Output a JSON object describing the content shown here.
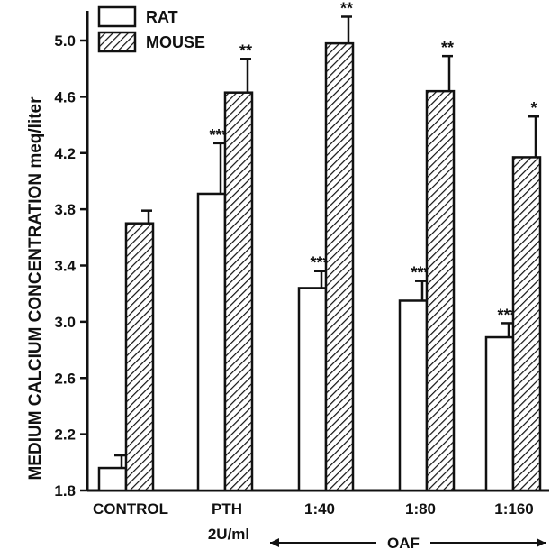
{
  "chart_data": {
    "type": "bar",
    "ylabel": "MEDIUM CALCIUM CONCENTRATION meq/liter",
    "ylim": [
      1.8,
      5.2
    ],
    "yticks": [
      "1.8",
      "2.2",
      "2.6",
      "3.0",
      "3.4",
      "3.8",
      "4.2",
      "4.6",
      "5.0"
    ],
    "categories": [
      {
        "label": "CONTROL",
        "sublabel": ""
      },
      {
        "label": "PTH",
        "sublabel": "2U/ml"
      },
      {
        "label": "1:40",
        "sublabel": ""
      },
      {
        "label": "1:80",
        "sublabel": ""
      },
      {
        "label": "1:160",
        "sublabel": ""
      }
    ],
    "group_label": "OAF",
    "series": [
      {
        "name": "RAT",
        "fill": "open",
        "values": [
          1.96,
          3.91,
          3.24,
          3.15,
          2.89
        ],
        "errors": [
          0.09,
          0.36,
          0.12,
          0.14,
          0.1
        ],
        "significance": [
          "",
          "***",
          "***",
          "***",
          "***"
        ]
      },
      {
        "name": "MOUSE",
        "fill": "hatched",
        "values": [
          3.7,
          4.63,
          4.98,
          4.64,
          4.17
        ],
        "errors": [
          0.09,
          0.24,
          0.19,
          0.25,
          0.29
        ],
        "significance": [
          "",
          "**",
          "**",
          "**",
          "*"
        ]
      }
    ],
    "legend_position": "top-left",
    "grid": false,
    "colors": {
      "ink": "#111111",
      "background": "#ffffff"
    }
  }
}
